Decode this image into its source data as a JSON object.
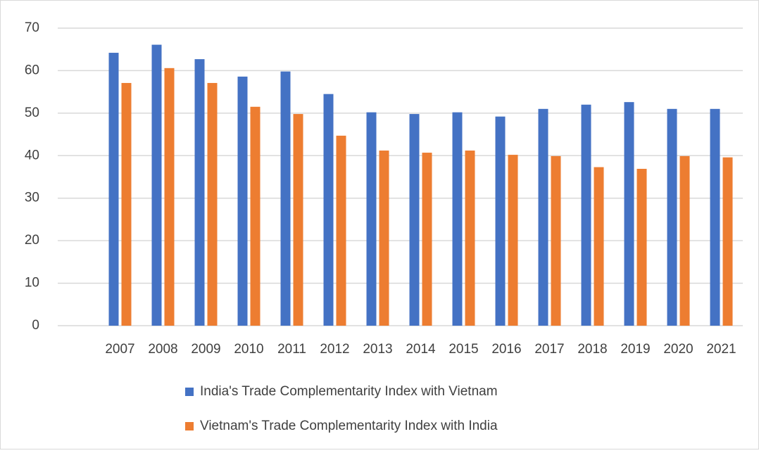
{
  "chart_data": {
    "type": "bar",
    "categories": [
      "2007",
      "2008",
      "2009",
      "2010",
      "2011",
      "2012",
      "2013",
      "2014",
      "2015",
      "2016",
      "2017",
      "2018",
      "2019",
      "2020",
      "2021"
    ],
    "series": [
      {
        "name": "India's Trade Complementarity Index with Vietnam",
        "color": "#4472c4",
        "values": [
          64.2,
          66.1,
          62.7,
          58.6,
          59.8,
          54.5,
          50.2,
          49.8,
          50.2,
          49.2,
          51.0,
          52.0,
          52.6,
          51.0,
          51.0
        ]
      },
      {
        "name": "Vietnam's Trade Complementarity Index with India",
        "color": "#ed7d31",
        "values": [
          57.1,
          60.6,
          57.1,
          51.5,
          49.8,
          44.7,
          41.2,
          40.7,
          41.2,
          40.2,
          39.9,
          37.3,
          36.9,
          39.9,
          39.6
        ]
      }
    ],
    "ylim": [
      0,
      70
    ],
    "yticks": [
      0,
      10,
      20,
      30,
      40,
      50,
      60,
      70
    ],
    "grid": true,
    "legend": "bottom"
  }
}
